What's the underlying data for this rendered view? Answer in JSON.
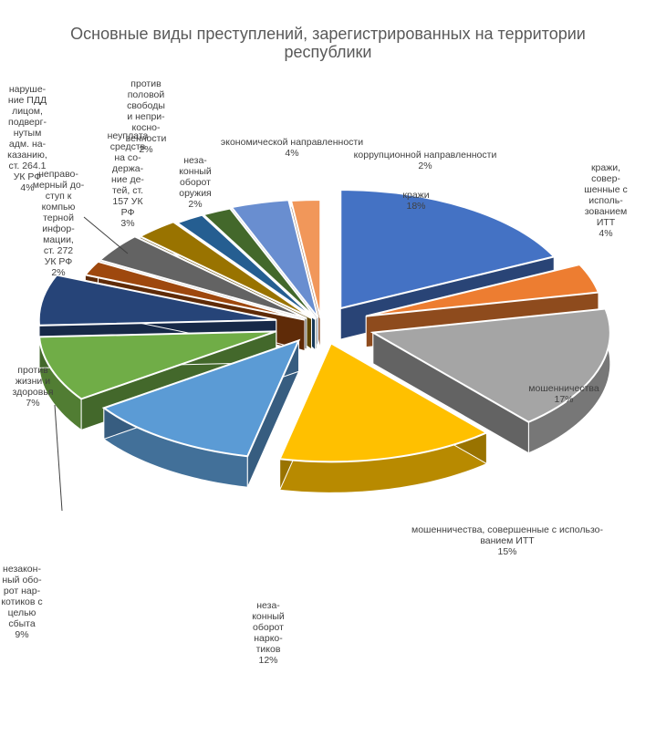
{
  "chart_data": {
    "type": "pie",
    "title": "Основные виды преступлений, зарегистрированных на территории",
    "title_line2": "республики",
    "categories": [
      "кражи",
      "кражи, совершенные с использованием ИТТ",
      "мошенничества",
      "мошенничества, совершенные с использованием ИТТ",
      "незаконный оборот наркотиков",
      "незаконный оборот наркотиков с целью сбыта",
      "против жизни и здоровья",
      "неправомерный доступ к компьютерной информации, ст. 272 УК РФ",
      "нарушение ПДД лицом, подвергнутым адм. наказанию, ст. 264.1 УК РФ",
      "неуплата средств на содержание детей, ст. 157 УК РФ",
      "против половой свободы и неприкосновенности",
      "незаконный оборот оружия",
      "экономической направленности",
      "коррупционной направленности"
    ],
    "values": [
      18,
      4,
      17,
      15,
      12,
      9,
      7,
      2,
      4,
      3,
      2,
      2,
      4,
      2
    ],
    "colors": [
      "#4472C4",
      "#ED7D31",
      "#A5A5A5",
      "#FFC000",
      "#5B9BD5",
      "#70AD47",
      "#264478",
      "#9E480E",
      "#636363",
      "#997300",
      "#255E91",
      "#43682B",
      "#698ED0",
      "#F1975A"
    ],
    "labels": [
      {
        "name": "кражи",
        "value": "18%"
      },
      {
        "name": "кражи,\nсовер-\nшенные с\nисполь-\nзованием\nИТТ",
        "value": "4%"
      },
      {
        "name": "мошенничества",
        "value": "17%"
      },
      {
        "name": "мошенничества, совершенные с использо-\nванием ИТТ",
        "value": "15%"
      },
      {
        "name": "неза-\nконный\nоборот\nнарко-\nтиков",
        "value": "12%"
      },
      {
        "name": "незакон-\nный обо-\nрот нар-\nкотиков с\nцелью\nсбыта",
        "value": "9%"
      },
      {
        "name": "против\nжизни и\nздоровья",
        "value": "7%"
      },
      {
        "name": "неправо-\nмерный до-\nступ к\nкомпью\nтерной\nинфор-\nмации,\nст. 272\nУК РФ",
        "value": "2%"
      },
      {
        "name": "наруше-\nние ПДД\nлицом,\nподверг-\nнутым\nадм. на-\nказанию,\nст. 264.1\nУК РФ",
        "value": "4%"
      },
      {
        "name": "неуплата\nсредств\nна со-\nдержа-\nние де-\nтей, ст.\n157 УК\nРФ",
        "value": "3%"
      },
      {
        "name": "против\nполовой\nсвободы\nи непри-\nкосно-\nвенности",
        "value": "2%"
      },
      {
        "name": "неза-\nконный\nоборот\nоружия",
        "value": "2%"
      },
      {
        "name": "экономической направленности",
        "value": "4%"
      },
      {
        "name": "коррупционной направленности",
        "value": "2%"
      }
    ],
    "exploded": true,
    "legend": "none"
  }
}
